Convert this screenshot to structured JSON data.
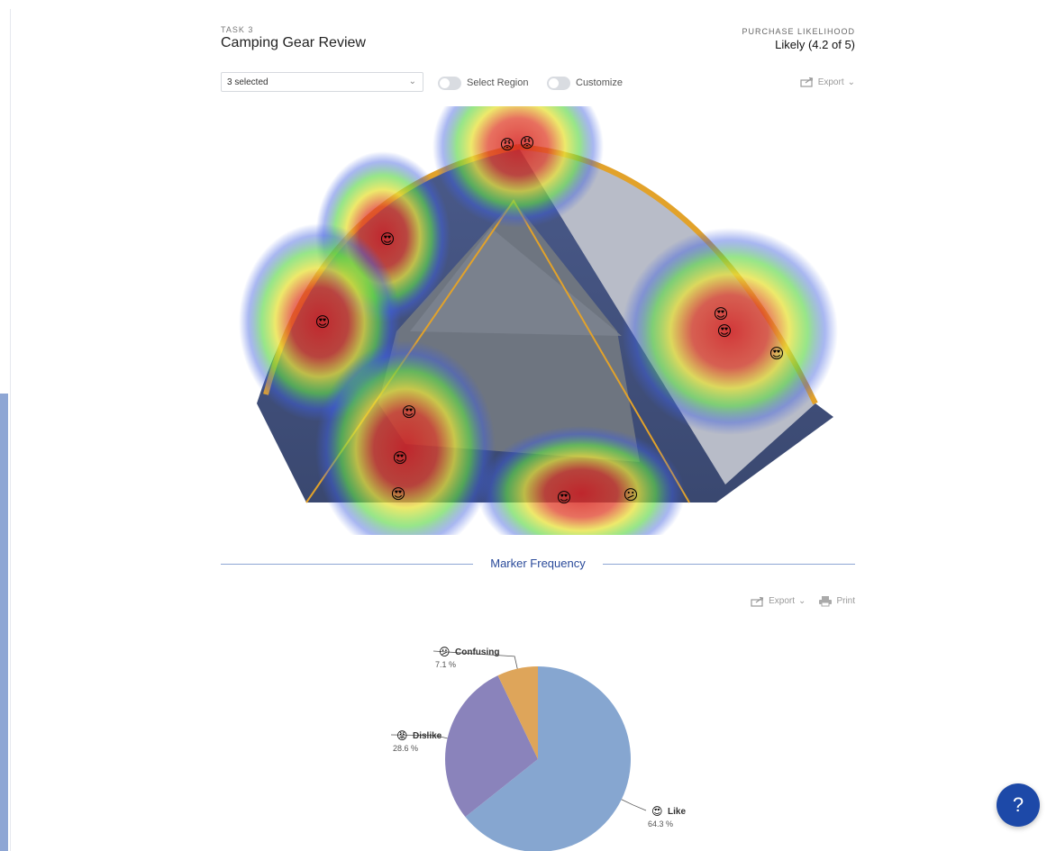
{
  "task": {
    "label": "TASK 3",
    "title": "Camping Gear Review"
  },
  "purchase_likelihood": {
    "label": "PURCHASE LIKELIHOOD",
    "value": "Likely (4.2 of 5)"
  },
  "controls": {
    "selector_value": "3 selected",
    "select_region_label": "Select Region",
    "customize_label": "Customize",
    "export_label": "Export"
  },
  "section": {
    "title": "Marker Frequency"
  },
  "chart_tools": {
    "export_label": "Export",
    "print_label": "Print"
  },
  "colors": {
    "accent": "#1d49a8",
    "like": "#86a6d0",
    "dislike": "#8a83bb",
    "confusing": "#dea55a"
  },
  "chart_data": {
    "type": "pie",
    "slices": [
      {
        "label": "Like",
        "value": 64.3,
        "display": "64.3 %",
        "color": "#86a6d0",
        "icon": "heart-eyes-emoji-icon"
      },
      {
        "label": "Dislike",
        "value": 28.6,
        "display": "28.6 %",
        "color": "#8a83bb",
        "icon": "angry-emoji-icon"
      },
      {
        "label": "Confusing",
        "value": 7.1,
        "display": "7.1 %",
        "color": "#dea55a",
        "icon": "confused-emoji-icon"
      }
    ]
  },
  "help": {
    "label": "?"
  }
}
